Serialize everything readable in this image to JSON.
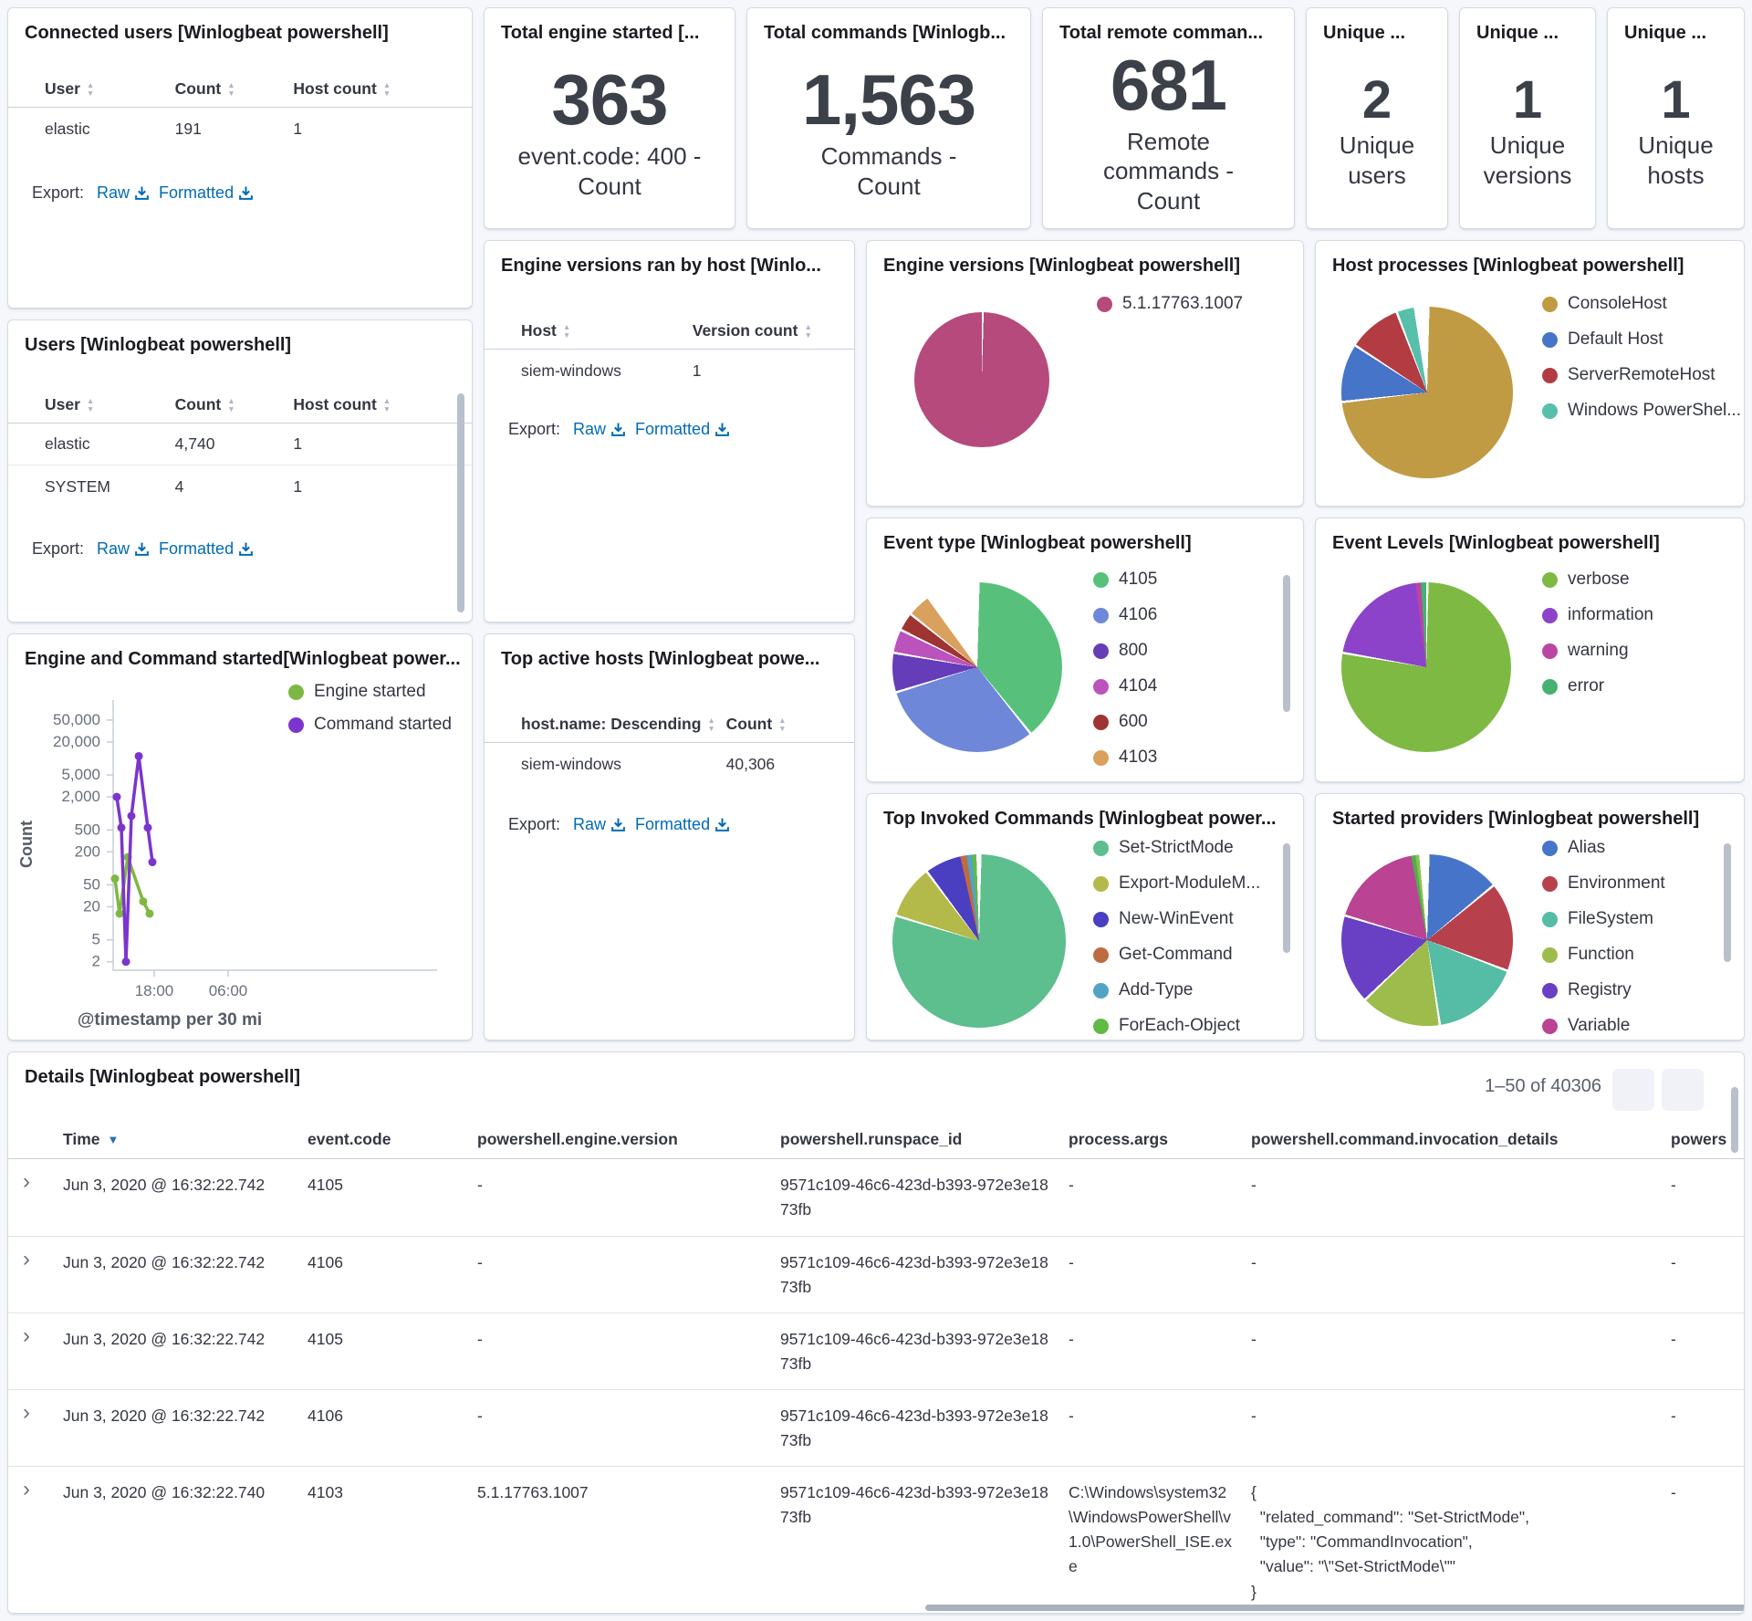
{
  "ui": {
    "export_label": "Export:",
    "raw": "Raw",
    "formatted": "Formatted"
  },
  "icons": {
    "sort_asc": "▲",
    "sort_desc": "▼",
    "time_sort": "▼",
    "prev": "‹",
    "next": "›",
    "expand": "›"
  },
  "connected_users": {
    "title": "Connected users [Winlogbeat powershell]",
    "columns": [
      "User",
      "Count",
      "Host count"
    ],
    "rows": [
      [
        "elastic",
        "191",
        "1"
      ]
    ]
  },
  "metrics": [
    {
      "title": "Total engine started [...",
      "value": "363",
      "label": "event.code: 400 - Count"
    },
    {
      "title": "Total commands [Winlogb...",
      "value": "1,563",
      "label": "Commands - Count"
    },
    {
      "title": "Total remote comman...",
      "value": "681",
      "label": "Remote commands - Count"
    },
    {
      "title": "Unique ...",
      "value": "2",
      "label": "Unique users"
    },
    {
      "title": "Unique ...",
      "value": "1",
      "label": "Unique versions"
    },
    {
      "title": "Unique ...",
      "value": "1",
      "label": "Unique hosts"
    }
  ],
  "users": {
    "title": "Users [Winlogbeat powershell]",
    "columns": [
      "User",
      "Count",
      "Host count"
    ],
    "rows": [
      [
        "elastic",
        "4,740",
        "1"
      ],
      [
        "SYSTEM",
        "4",
        "1"
      ]
    ]
  },
  "engine_versions_by_host": {
    "title": "Engine versions ran by host [Winlo...",
    "columns": [
      "Host",
      "Version count"
    ],
    "rows": [
      [
        "siem-windows",
        "1"
      ]
    ]
  },
  "top_active_hosts": {
    "title": "Top active hosts [Winlogbeat powe...",
    "columns": [
      "host.name: Descending",
      "Count"
    ],
    "rows": [
      [
        "siem-windows",
        "40,306"
      ]
    ]
  },
  "engine_versions_pie": {
    "title": "Engine versions [Winlogbeat powershell]",
    "type": "pie",
    "slices": [
      {
        "label": "5.1.17763.1007",
        "color": "#B64A7C",
        "value": 100
      }
    ]
  },
  "host_processes": {
    "title": "Host processes [Winlogbeat powershell]",
    "type": "pie",
    "slices": [
      {
        "label": "ConsoleHost",
        "color": "#C09B43",
        "value": 73
      },
      {
        "label": "Default Host",
        "color": "#4674C8",
        "value": 11
      },
      {
        "label": "ServerRemoteHost",
        "color": "#B23C41",
        "value": 10
      },
      {
        "label": "Windows PowerShel...",
        "color": "#57C0AC",
        "value": 3.5
      },
      {
        "label": "",
        "color": "#FFFFFF",
        "value": 2.5
      }
    ]
  },
  "event_type": {
    "title": "Event type [Winlogbeat powershell]",
    "type": "pie",
    "slices": [
      {
        "label": "4105",
        "color": "#57C17B",
        "value": 39
      },
      {
        "label": "4106",
        "color": "#6F87D8",
        "value": 31
      },
      {
        "label": "800",
        "color": "#663DB8",
        "value": 7.5
      },
      {
        "label": "4104",
        "color": "#BC52BC",
        "value": 4.5
      },
      {
        "label": "600",
        "color": "#9E3533",
        "value": 3.5
      },
      {
        "label": "4103",
        "color": "#DAA05D",
        "value": 4.5
      },
      {
        "label": "",
        "color": "#FFFFFF",
        "value": 10
      }
    ]
  },
  "event_levels": {
    "title": "Event Levels [Winlogbeat powershell]",
    "type": "pie",
    "slices": [
      {
        "label": "verbose",
        "color": "#7EB944",
        "value": 77.5
      },
      {
        "label": "information",
        "color": "#8C43C9",
        "value": 20.5
      },
      {
        "label": "warning",
        "color": "#BC44A2",
        "value": 1
      },
      {
        "label": "error",
        "color": "#45B36F",
        "value": 1
      }
    ]
  },
  "top_invoked": {
    "title": "Top Invoked Commands [Winlogbeat power...",
    "type": "pie",
    "slices": [
      {
        "label": "Set-StrictMode",
        "color": "#5DBE8E",
        "value": 79.5
      },
      {
        "label": "Export-ModuleM...",
        "color": "#B3BA4A",
        "value": 10
      },
      {
        "label": "New-WinEvent",
        "color": "#4A3EC1",
        "value": 7
      },
      {
        "label": "Get-Command",
        "color": "#BD6B40",
        "value": 1.2
      },
      {
        "label": "Add-Type",
        "color": "#53A3C5",
        "value": 1
      },
      {
        "label": "ForEach-Object",
        "color": "#62BA46",
        "value": 0.8
      },
      {
        "label": "",
        "color": "#FFFFFF",
        "value": 0.5
      }
    ]
  },
  "started_providers": {
    "title": "Started providers [Winlogbeat powershell]",
    "type": "pie",
    "slices": [
      {
        "label": "Alias",
        "color": "#4674C8",
        "value": 13.8
      },
      {
        "label": "Environment",
        "color": "#B6414C",
        "value": 16.8
      },
      {
        "label": "FileSystem",
        "color": "#55BDA5",
        "value": 16.8
      },
      {
        "label": "Function",
        "color": "#9DBC4B",
        "value": 15.2
      },
      {
        "label": "Registry",
        "color": "#6940C4",
        "value": 16.8
      },
      {
        "label": "Variable",
        "color": "#BA4393",
        "value": 17.6
      },
      {
        "label": "",
        "color": "#4CAF50",
        "value": 0.8
      },
      {
        "label": "",
        "color": "#8BC34A",
        "value": 0.7
      },
      {
        "label": "",
        "color": "#FFFFFF",
        "value": 1.5
      }
    ]
  },
  "engine_command_chart": {
    "title": "Engine and Command started[Winlogbeat power...",
    "type": "line",
    "yscale": "log",
    "ylabel": "Count",
    "xlabel": "@timestamp per 30 mi",
    "yticks": [
      {
        "label": "50,000",
        "v": 50000
      },
      {
        "label": "20,000",
        "v": 20000
      },
      {
        "label": "5,000",
        "v": 5000
      },
      {
        "label": "2,000",
        "v": 2000
      },
      {
        "label": "500",
        "v": 500
      },
      {
        "label": "200",
        "v": 200
      },
      {
        "label": "50",
        "v": 50
      },
      {
        "label": "20",
        "v": 20
      },
      {
        "label": "5",
        "v": 5
      },
      {
        "label": "2",
        "v": 2
      }
    ],
    "xticks": [
      {
        "label": "18:00",
        "f": 0.25
      },
      {
        "label": "06:00",
        "f": 0.7
      }
    ],
    "series": [
      {
        "name": "Engine started",
        "color": "#7EB842",
        "points": [
          {
            "f": 0.011,
            "v": 65
          },
          {
            "f": 0.039,
            "v": 15
          },
          {
            "f": 0.089,
            "v": 160
          },
          {
            "f": 0.183,
            "v": 25
          },
          {
            "f": 0.222,
            "v": 15
          }
        ]
      },
      {
        "name": "Command started",
        "color": "#7B35CC",
        "points": [
          {
            "f": 0.022,
            "v": 2000
          },
          {
            "f": 0.05,
            "v": 550
          },
          {
            "f": 0.078,
            "v": 2
          },
          {
            "f": 0.111,
            "v": 900
          },
          {
            "f": 0.156,
            "v": 11000
          },
          {
            "f": 0.211,
            "v": 550
          },
          {
            "f": 0.239,
            "v": 130
          }
        ]
      }
    ]
  },
  "details": {
    "title": "Details [Winlogbeat powershell]",
    "pagination": "1–50 of 40306",
    "columns": [
      "Time",
      "event.code",
      "powershell.engine.version",
      "powershell.runspace_id",
      "process.args",
      "powershell.command.invocation_details",
      "powers"
    ],
    "rows": [
      {
        "time": "Jun 3, 2020 @ 16:32:22.742",
        "code": "4105",
        "version": "-",
        "runspace": "9571c109-46c6-423d-b393-972e3e1873fb",
        "args": "-",
        "invocation": "-",
        "last": "-"
      },
      {
        "time": "Jun 3, 2020 @ 16:32:22.742",
        "code": "4106",
        "version": "-",
        "runspace": "9571c109-46c6-423d-b393-972e3e1873fb",
        "args": "-",
        "invocation": "-",
        "last": "-"
      },
      {
        "time": "Jun 3, 2020 @ 16:32:22.742",
        "code": "4105",
        "version": "-",
        "runspace": "9571c109-46c6-423d-b393-972e3e1873fb",
        "args": "-",
        "invocation": "-",
        "last": "-"
      },
      {
        "time": "Jun 3, 2020 @ 16:32:22.742",
        "code": "4106",
        "version": "-",
        "runspace": "9571c109-46c6-423d-b393-972e3e1873fb",
        "args": "-",
        "invocation": "-",
        "last": "-"
      },
      {
        "time": "Jun 3, 2020 @ 16:32:22.740",
        "code": "4103",
        "version": "5.1.17763.1007",
        "runspace": "9571c109-46c6-423d-b393-972e3e1873fb",
        "args": "C:\\Windows\\system32\\WindowsPowerShell\\v1.0\\PowerShell_ISE.exe",
        "invocation": "{\n  \"related_command\": \"Set-StrictMode\",\n  \"type\": \"CommandInvocation\",\n  \"value\": \"\\\"Set-StrictMode\\\"\"\n}",
        "last": "-"
      }
    ]
  }
}
